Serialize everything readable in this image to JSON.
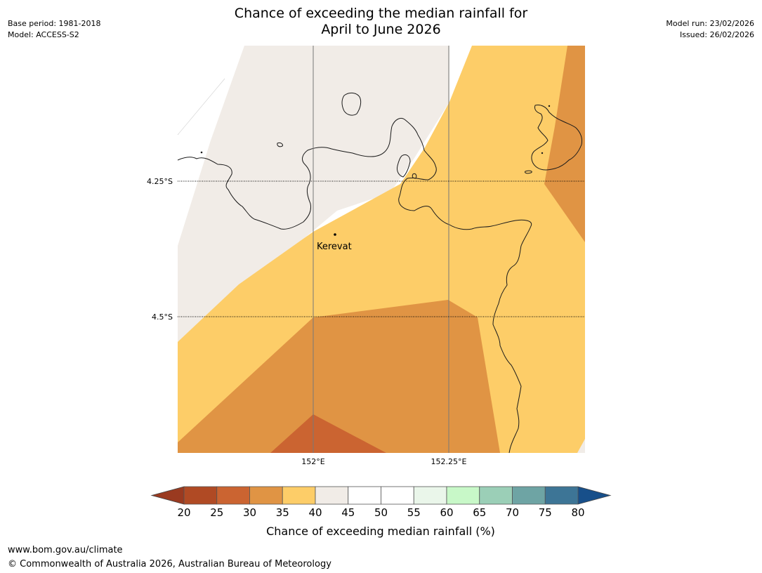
{
  "header": {
    "title_line1": "Chance of exceeding the median rainfall for",
    "title_line2": "April to June 2026",
    "base_period": "Base period: 1981-2018",
    "model": "Model: ACCESS-S2",
    "model_run": "Model run: 23/02/2026",
    "issued": "Issued: 26/02/2026"
  },
  "map": {
    "lat_labels": [
      "4.25°S",
      "4.5°S"
    ],
    "lon_labels": [
      "152°E",
      "152.25°E"
    ],
    "place": {
      "name": "Kerevat"
    },
    "band_colors": {
      "b20_25": "#b04a24",
      "b25_30": "#cb6431",
      "b30_35": "#e09444",
      "b35_40": "#fdcd68",
      "b40_45": "#f1ece7"
    },
    "coastline_color": "#1a1a1a"
  },
  "legend": {
    "title": "Chance of exceeding median rainfall (%)",
    "ticks": [
      "20",
      "25",
      "30",
      "35",
      "40",
      "45",
      "50",
      "55",
      "60",
      "65",
      "70",
      "75",
      "80"
    ],
    "under_color": "#9a3a20",
    "over_color": "#174f8a",
    "colors": [
      "#b04a24",
      "#cb6431",
      "#e09444",
      "#fdcd68",
      "#f1ece7",
      "#ffffff",
      "#ffffff",
      "#eaf6ea",
      "#c8f8c8",
      "#9bcfb7",
      "#6ea4a4",
      "#3d7596"
    ]
  },
  "footer": {
    "url": "www.bom.gov.au/climate",
    "copyright": "© Commonwealth of Australia 2026, Australian Bureau of Meteorology"
  }
}
